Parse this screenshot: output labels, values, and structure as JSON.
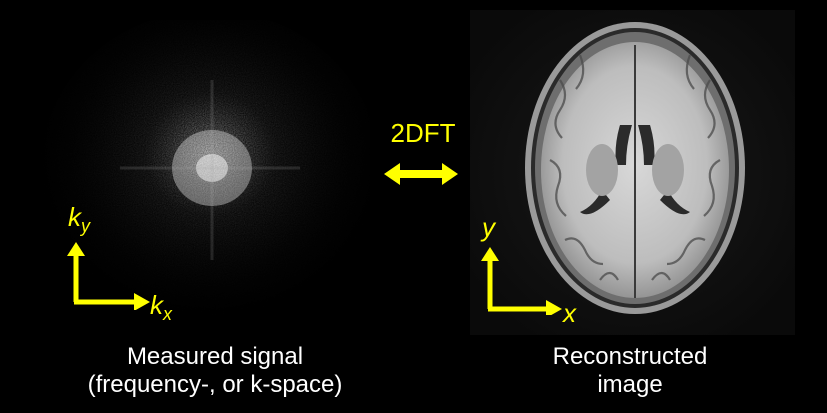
{
  "transform_label": "2DFT",
  "left_panel": {
    "caption_line1": "Measured signal",
    "caption_line2": "(frequency-, or k-space)",
    "axis_y": "k",
    "axis_y_sub": "y",
    "axis_x": "k",
    "axis_x_sub": "x"
  },
  "right_panel": {
    "caption_line1": "Reconstructed",
    "caption_line2": "image",
    "axis_y": "y",
    "axis_x": "x"
  },
  "colors": {
    "background": "#000000",
    "accent": "#ffff00",
    "caption_text": "#ffffff"
  }
}
